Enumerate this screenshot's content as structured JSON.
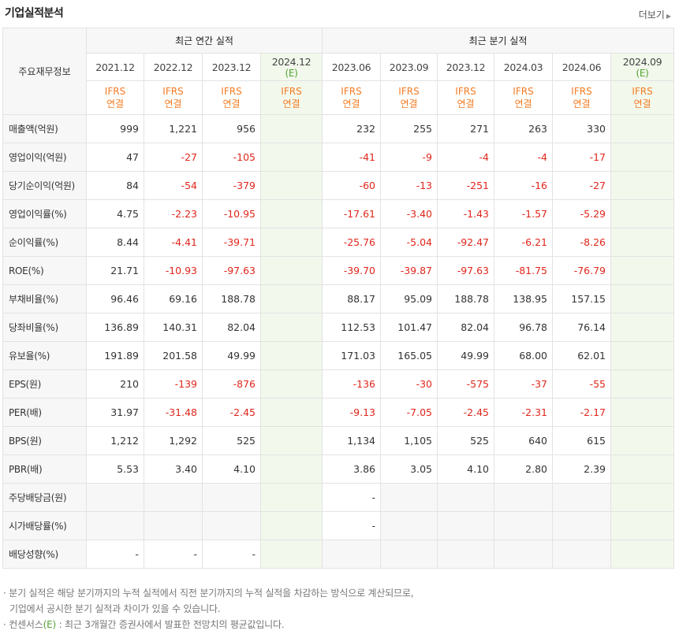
{
  "title": "기업실적분석",
  "more": "더보기",
  "header": {
    "corner": "주요재무정보",
    "annual_group": "최근 연간 실적",
    "quarter_group": "최근 분기 실적",
    "ifrs_line1": "IFRS",
    "ifrs_line2": "연결",
    "estimate_mark": "(E)",
    "annual_periods": [
      "2021.12",
      "2022.12",
      "2023.12",
      "2024.12"
    ],
    "quarter_periods": [
      "2023.06",
      "2023.09",
      "2023.12",
      "2024.03",
      "2024.06",
      "2024.09"
    ]
  },
  "rows": [
    {
      "label": "매출액(억원)",
      "values": [
        "999",
        "1,221",
        "956",
        "",
        "232",
        "255",
        "271",
        "263",
        "330",
        ""
      ]
    },
    {
      "label": "영업이익(억원)",
      "values": [
        "47",
        "-27",
        "-105",
        "",
        "-41",
        "-9",
        "-4",
        "-4",
        "-17",
        ""
      ]
    },
    {
      "label": "당기순이익(억원)",
      "values": [
        "84",
        "-54",
        "-379",
        "",
        "-60",
        "-13",
        "-251",
        "-16",
        "-27",
        ""
      ]
    },
    {
      "label": "영업이익률(%)",
      "values": [
        "4.75",
        "-2.23",
        "-10.95",
        "",
        "-17.61",
        "-3.40",
        "-1.43",
        "-1.57",
        "-5.29",
        ""
      ]
    },
    {
      "label": "순이익률(%)",
      "values": [
        "8.44",
        "-4.41",
        "-39.71",
        "",
        "-25.76",
        "-5.04",
        "-92.47",
        "-6.21",
        "-8.26",
        ""
      ]
    },
    {
      "label": "ROE(%)",
      "values": [
        "21.71",
        "-10.93",
        "-97.63",
        "",
        "-39.70",
        "-39.87",
        "-97.63",
        "-81.75",
        "-76.79",
        ""
      ]
    },
    {
      "label": "부채비율(%)",
      "values": [
        "96.46",
        "69.16",
        "188.78",
        "",
        "88.17",
        "95.09",
        "188.78",
        "138.95",
        "157.15",
        ""
      ]
    },
    {
      "label": "당좌비율(%)",
      "values": [
        "136.89",
        "140.31",
        "82.04",
        "",
        "112.53",
        "101.47",
        "82.04",
        "96.78",
        "76.14",
        ""
      ]
    },
    {
      "label": "유보율(%)",
      "values": [
        "191.89",
        "201.58",
        "49.99",
        "",
        "171.03",
        "165.05",
        "49.99",
        "68.00",
        "62.01",
        ""
      ]
    },
    {
      "label": "EPS(원)",
      "values": [
        "210",
        "-139",
        "-876",
        "",
        "-136",
        "-30",
        "-575",
        "-37",
        "-55",
        ""
      ]
    },
    {
      "label": "PER(배)",
      "values": [
        "31.97",
        "-31.48",
        "-2.45",
        "",
        "-9.13",
        "-7.05",
        "-2.45",
        "-2.31",
        "-2.17",
        ""
      ]
    },
    {
      "label": "BPS(원)",
      "values": [
        "1,212",
        "1,292",
        "525",
        "",
        "1,134",
        "1,105",
        "525",
        "640",
        "615",
        ""
      ]
    },
    {
      "label": "PBR(배)",
      "values": [
        "5.53",
        "3.40",
        "4.10",
        "",
        "3.86",
        "3.05",
        "4.10",
        "2.80",
        "2.39",
        ""
      ]
    },
    {
      "label": "주당배당금(원)",
      "values": [
        "",
        "",
        "",
        "",
        "-",
        "",
        "",
        "",
        "",
        ""
      ]
    },
    {
      "label": "시가배당률(%)",
      "values": [
        "",
        "",
        "",
        "",
        "-",
        "",
        "",
        "",
        "",
        ""
      ]
    },
    {
      "label": "배당성향(%)",
      "values": [
        "-",
        "-",
        "-",
        "",
        "",
        "",
        "",
        "",
        "",
        ""
      ]
    }
  ],
  "notes": {
    "line1": "· 분기 실적은 해당 분기까지의 누적 실적에서 직전 분기까지의 누적 실적을 차감하는 방식으로 계산되므로,",
    "line2": "기업에서 공시한 분기 실적과 차이가 있을 수 있습니다.",
    "line3_prefix": "· 컨센서스",
    "line3_mark": "(E)",
    "line3_suffix": " : 최근 3개월간 증권사에서 발표한 전망치의 평균값입니다."
  }
}
